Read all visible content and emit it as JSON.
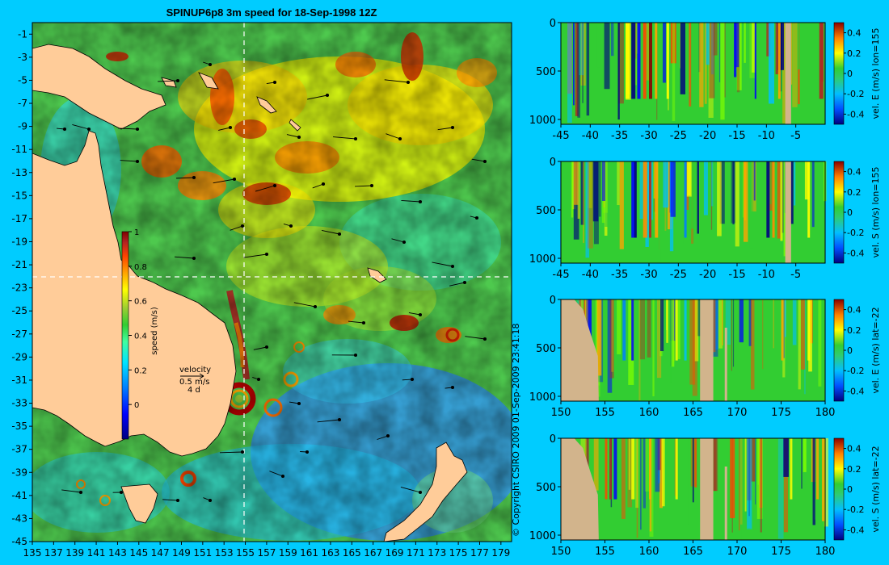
{
  "title": "SPINUP6p8 3m speed for 18-Sep-1998 12Z",
  "copyright": "© Copyright CSIRO 2009   01-Sep-2009 23:41:18",
  "colors": {
    "background": "#00ccff",
    "land": "#ffcc99",
    "section_land": "#d2b48c",
    "colormap": [
      "#00007f",
      "#0000ff",
      "#0080ff",
      "#00e5ff",
      "#40ff9f",
      "#32cd32",
      "#9acd32",
      "#ffff00",
      "#ffa500",
      "#ff4500",
      "#b22222",
      "#7f0000"
    ]
  },
  "chart_data": [
    {
      "type": "heatmap",
      "name": "map",
      "title": "SPINUP6p8 3m speed for 18-Sep-1998 12Z",
      "x_ticks": [
        "135",
        "137",
        "139",
        "141",
        "143",
        "145",
        "147",
        "149",
        "151",
        "153",
        "155",
        "157",
        "159",
        "161",
        "163",
        "165",
        "167",
        "169",
        "171",
        "173",
        "175",
        "177",
        "179"
      ],
      "y_ticks": [
        "-1",
        "-3",
        "-5",
        "-7",
        "-9",
        "-11",
        "-13",
        "-15",
        "-17",
        "-19",
        "-21",
        "-23",
        "-25",
        "-27",
        "-29",
        "-31",
        "-33",
        "-35",
        "-37",
        "-39",
        "-41",
        "-43",
        "-45"
      ],
      "xlim": [
        135,
        180
      ],
      "ylim": [
        -45,
        0
      ],
      "colorbar": {
        "label": "speed (m/s)",
        "ticks": [
          "0",
          "0.2",
          "0.4",
          "0.6",
          "0.8",
          "1"
        ],
        "range": [
          -0.2,
          1
        ]
      },
      "velocity_key": {
        "title": "velocity",
        "speed": "0.5 m/s",
        "duration": "4 d"
      },
      "section_lines": {
        "lon": 155,
        "lat": -22
      }
    },
    {
      "type": "heatmap",
      "name": "section-1",
      "colorbar_label": "vel. E (m/s) lon=155",
      "x_ticks": [
        "-45",
        "-40",
        "-35",
        "-30",
        "-25",
        "-20",
        "-15",
        "-10",
        "-5"
      ],
      "y_ticks": [
        "0",
        "500",
        "1000"
      ],
      "colorbar_ticks": [
        "0.4",
        "0.2",
        "0",
        "-0.2",
        "-0.4"
      ],
      "xlim": [
        -45,
        0
      ],
      "ylim": [
        1050,
        0
      ]
    },
    {
      "type": "heatmap",
      "name": "section-2",
      "colorbar_label": "vel. S (m/s) lon=155",
      "x_ticks": [
        "-45",
        "-40",
        "-35",
        "-30",
        "-25",
        "-20",
        "-15",
        "-10",
        "-5"
      ],
      "y_ticks": [
        "0",
        "500",
        "1000"
      ],
      "colorbar_ticks": [
        "0.4",
        "0.2",
        "0",
        "-0.2",
        "-0.4"
      ],
      "xlim": [
        -45,
        0
      ],
      "ylim": [
        1050,
        0
      ]
    },
    {
      "type": "heatmap",
      "name": "section-3",
      "colorbar_label": "vel. E (m/s) lat=-22",
      "x_ticks": [
        "150",
        "155",
        "160",
        "165",
        "170",
        "175",
        "180"
      ],
      "y_ticks": [
        "0",
        "500",
        "1000"
      ],
      "colorbar_ticks": [
        "0.4",
        "0.2",
        "0",
        "-0.2",
        "-0.4"
      ],
      "xlim": [
        150,
        180
      ],
      "ylim": [
        1050,
        0
      ]
    },
    {
      "type": "heatmap",
      "name": "section-4",
      "colorbar_label": "vel. S (m/s) lat=-22",
      "x_ticks": [
        "150",
        "155",
        "160",
        "165",
        "170",
        "175",
        "180"
      ],
      "y_ticks": [
        "0",
        "500",
        "1000"
      ],
      "colorbar_ticks": [
        "0.4",
        "0.2",
        "0",
        "-0.2",
        "-0.4"
      ],
      "xlim": [
        150,
        180
      ],
      "ylim": [
        1050,
        0
      ]
    }
  ]
}
